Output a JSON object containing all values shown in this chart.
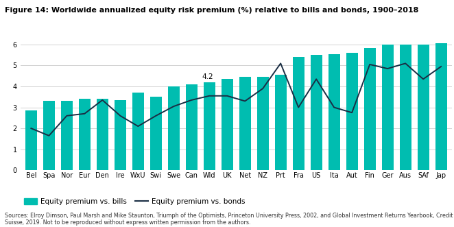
{
  "title": "Figure 14: Worldwide annualized equity risk premium (%) relative to bills and bonds, 1900–2018",
  "categories": [
    "Bel",
    "Spa",
    "Nor",
    "Eur",
    "Den",
    "Ire",
    "WxU",
    "Swi",
    "Swe",
    "Can",
    "Wld",
    "UK",
    "Net",
    "NZ",
    "Prt",
    "Fra",
    "US",
    "Ita",
    "Aut",
    "Fin",
    "Ger",
    "Aus",
    "SAf",
    "Jap"
  ],
  "bars": [
    2.85,
    3.3,
    3.3,
    3.4,
    3.4,
    3.35,
    3.7,
    3.5,
    4.0,
    4.1,
    4.2,
    4.35,
    4.45,
    4.45,
    4.55,
    5.4,
    5.5,
    5.55,
    5.6,
    5.85,
    6.0,
    6.0,
    6.0,
    6.05
  ],
  "line": [
    2.0,
    1.65,
    2.6,
    2.7,
    3.35,
    2.6,
    2.1,
    2.6,
    3.05,
    3.35,
    3.55,
    3.55,
    3.3,
    3.9,
    5.1,
    3.0,
    4.35,
    3.0,
    2.75,
    5.05,
    4.85,
    5.1,
    4.35,
    4.95
  ],
  "annotation_index": 10,
  "annotation_text": "4.2",
  "bar_color": "#00BDB0",
  "line_color": "#1a2e44",
  "ylim": [
    0,
    6.5
  ],
  "yticks": [
    0,
    1,
    2,
    3,
    4,
    5,
    6
  ],
  "legend_bar_label": "Equity premium vs. bills",
  "legend_line_label": "Equity premium vs. bonds",
  "source_text": "Sources: Elroy Dimson, Paul Marsh and Mike Staunton, Triumph of the Optimists, Princeton University Press, 2002, and Global Investment Returns Yearbook, Credit\nSuisse, 2019. Not to be reproduced without express written permission from the authors.",
  "title_fontsize": 8.0,
  "tick_fontsize": 7.0,
  "legend_fontsize": 7.5,
  "source_fontsize": 5.8
}
